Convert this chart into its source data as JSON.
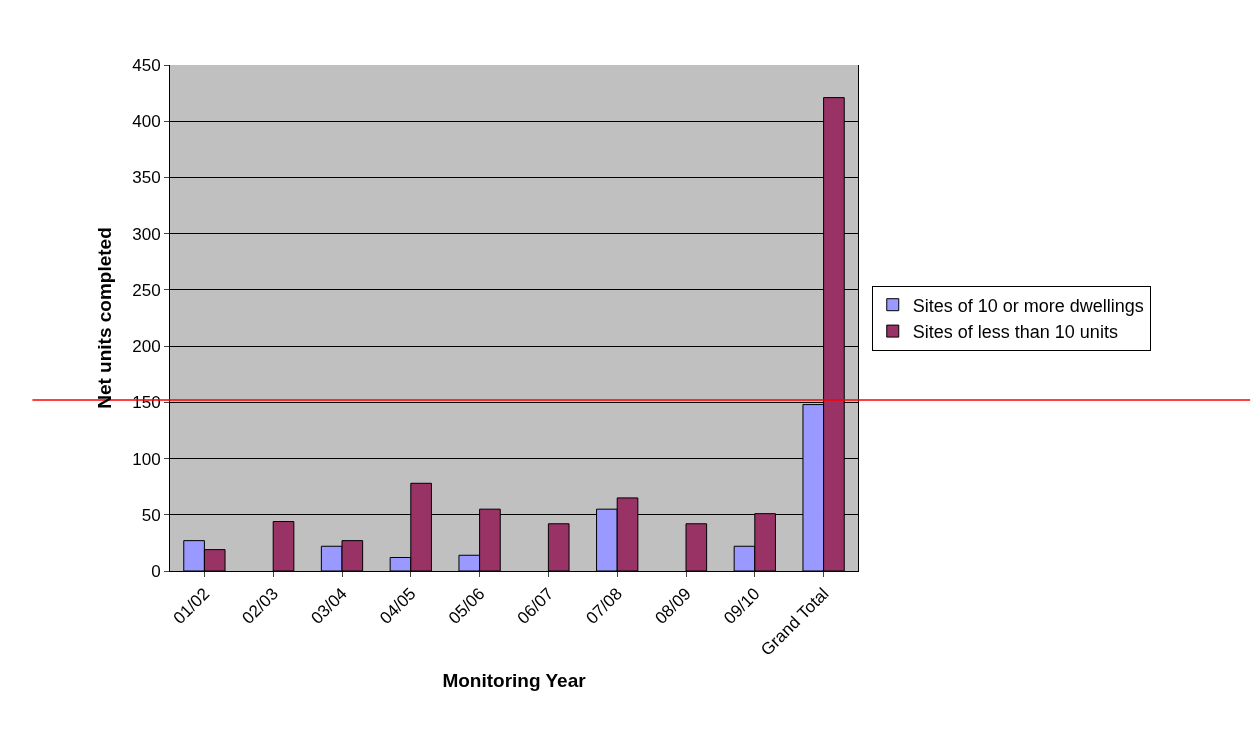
{
  "chart_data": {
    "type": "bar",
    "xlabel": "Monitoring Year",
    "ylabel": "Net units completed",
    "categories": [
      "01/02",
      "02/03",
      "03/04",
      "04/05",
      "05/06",
      "06/07",
      "07/08",
      "08/09",
      "09/10",
      "Grand Total"
    ],
    "series": [
      {
        "name": "Sites of 10 or more dwellings",
        "color": "#9999ff",
        "values": [
          27,
          null,
          22,
          12,
          14,
          null,
          55,
          null,
          22,
          148
        ]
      },
      {
        "name": "Sites of less than 10 units",
        "color": "#993366",
        "values": [
          19,
          44,
          27,
          78,
          55,
          42,
          65,
          42,
          51,
          421
        ]
      }
    ],
    "ylim": [
      0,
      450
    ],
    "yticks": [
      0,
      50,
      100,
      150,
      200,
      250,
      300,
      350,
      400,
      450
    ],
    "grid": "y",
    "legend": "right",
    "ref_lines": [
      {
        "axis": "y",
        "value": 152,
        "color": "#ff0000"
      }
    ]
  }
}
